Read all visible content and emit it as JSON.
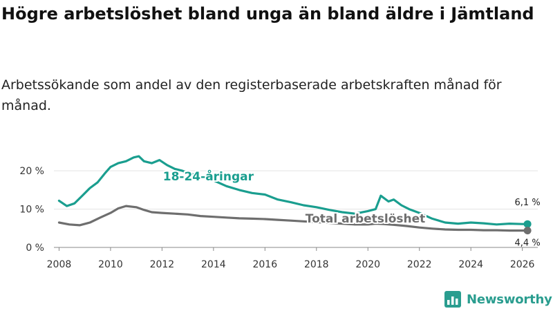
{
  "title": "Högre arbetslöshet bland unga än bland äldre i Jämtland",
  "subtitle": "Arbetssökande som andel av den registerbaserade arbetskraften månad för månad.",
  "brand": {
    "name": "Newsworthy",
    "icon": "bar-chart-logo-icon",
    "color": "#2a9d8f"
  },
  "chart_data": {
    "type": "line",
    "ylim": [
      0,
      24
    ],
    "xlim": [
      2007.8,
      2026.6
    ],
    "y_ticks": [
      0,
      10,
      20
    ],
    "y_tick_labels": [
      "0 %",
      "10 %",
      "20 %"
    ],
    "x_ticks": [
      2008,
      2010,
      2012,
      2014,
      2016,
      2018,
      2020,
      2022,
      2024,
      2026
    ],
    "x_tick_labels": [
      "2008",
      "2010",
      "2012",
      "2014",
      "2016",
      "2018",
      "2020",
      "2022",
      "2024",
      "2026"
    ],
    "grid": true,
    "series": [
      {
        "name": "18-24-åringar",
        "color": "#1a9e8f",
        "label_position": [
          2013.8,
          17.5
        ],
        "end_label": "6,1 %",
        "x": [
          2008.0,
          2008.3,
          2008.6,
          2008.9,
          2009.2,
          2009.5,
          2009.8,
          2010.0,
          2010.3,
          2010.6,
          2010.9,
          2011.1,
          2011.3,
          2011.6,
          2011.9,
          2012.2,
          2012.5,
          2012.8,
          2013.0,
          2013.5,
          2014.0,
          2014.5,
          2015.0,
          2015.5,
          2016.0,
          2016.5,
          2017.0,
          2017.5,
          2018.0,
          2018.5,
          2019.0,
          2019.5,
          2020.0,
          2020.3,
          2020.5,
          2020.8,
          2021.0,
          2021.3,
          2021.6,
          2022.0,
          2022.5,
          2023.0,
          2023.5,
          2024.0,
          2024.5,
          2025.0,
          2025.5,
          2026.0,
          2026.2
        ],
        "y": [
          12.2,
          10.8,
          11.5,
          13.5,
          15.5,
          17.0,
          19.5,
          21.0,
          22.0,
          22.5,
          23.5,
          23.8,
          22.5,
          22.0,
          22.8,
          21.5,
          20.5,
          20.0,
          19.5,
          18.5,
          17.5,
          16.0,
          15.0,
          14.2,
          13.8,
          12.5,
          11.8,
          11.0,
          10.5,
          9.8,
          9.2,
          8.8,
          9.5,
          10.0,
          13.5,
          12.0,
          12.5,
          11.0,
          10.0,
          9.0,
          7.5,
          6.5,
          6.2,
          6.5,
          6.3,
          6.0,
          6.2,
          6.1,
          6.1
        ]
      },
      {
        "name": "Total arbetslöshet",
        "color": "#6e6e6e",
        "label_position": [
          2019.9,
          6.5
        ],
        "end_label": "4,4 %",
        "x": [
          2008.0,
          2008.4,
          2008.8,
          2009.2,
          2009.6,
          2010.0,
          2010.3,
          2010.6,
          2011.0,
          2011.3,
          2011.6,
          2012.0,
          2012.5,
          2013.0,
          2013.5,
          2014.0,
          2014.5,
          2015.0,
          2015.5,
          2016.0,
          2016.5,
          2017.0,
          2017.5,
          2018.0,
          2018.5,
          2019.0,
          2019.5,
          2020.0,
          2020.3,
          2020.6,
          2021.0,
          2021.5,
          2022.0,
          2022.5,
          2023.0,
          2023.5,
          2024.0,
          2024.5,
          2025.0,
          2025.5,
          2026.0,
          2026.2
        ],
        "y": [
          6.5,
          6.0,
          5.8,
          6.5,
          7.8,
          9.0,
          10.2,
          10.8,
          10.5,
          9.8,
          9.2,
          9.0,
          8.8,
          8.6,
          8.2,
          8.0,
          7.8,
          7.6,
          7.5,
          7.4,
          7.2,
          7.0,
          6.8,
          6.6,
          6.4,
          6.2,
          6.0,
          6.0,
          6.2,
          6.1,
          5.9,
          5.6,
          5.2,
          4.9,
          4.7,
          4.6,
          4.6,
          4.5,
          4.5,
          4.4,
          4.4,
          4.4
        ]
      }
    ]
  }
}
